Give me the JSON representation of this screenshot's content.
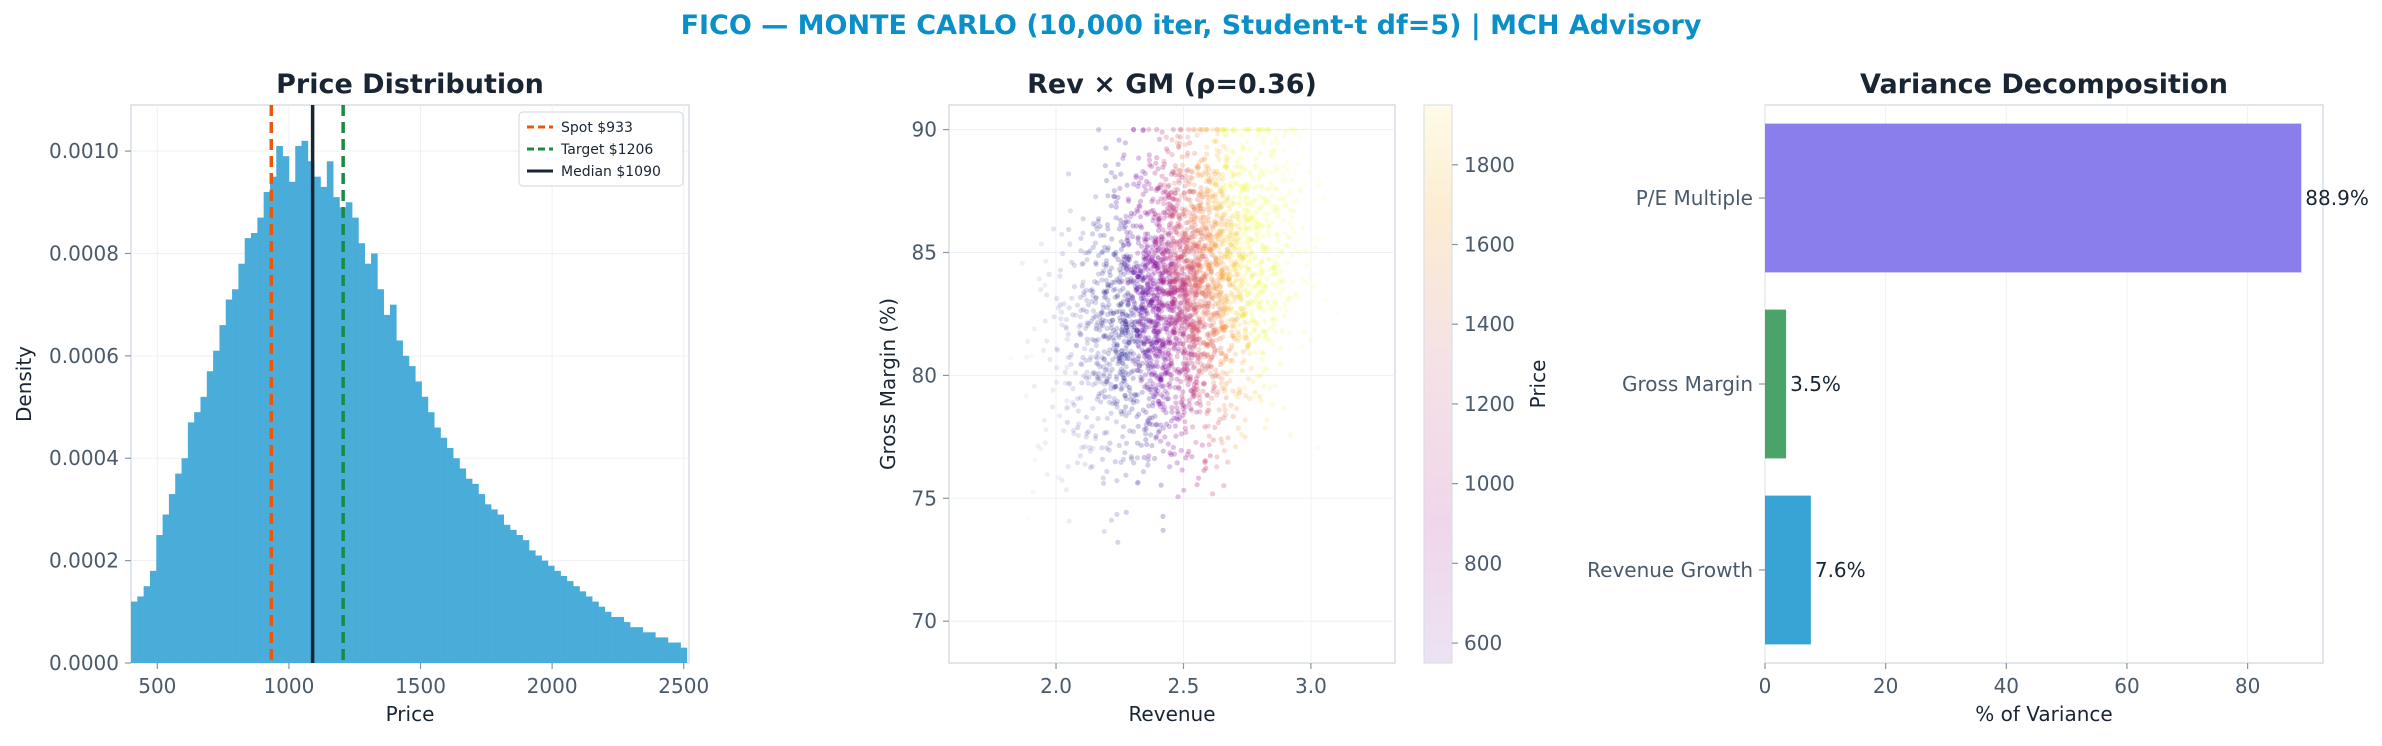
{
  "suptitle": "FICO — MONTE CARLO (10,000 iter, Student-t df=5) | MCH Advisory",
  "colors": {
    "title": "#0a8fc8",
    "axis_text": "#4a5a6a",
    "panel_title": "#1a2533",
    "hist": "#4aadd9",
    "spot": "#e8590c",
    "target": "#1a8a44",
    "median": "#1a2533",
    "bar_pe": "#8a7eec",
    "bar_gm": "#4aa46a",
    "bar_rev": "#37a4d5"
  },
  "chart_data": [
    {
      "type": "bar",
      "subtype": "histogram",
      "title": "Price Distribution",
      "xlabel": "Price",
      "ylabel": "Density",
      "xlim": [
        400,
        2520
      ],
      "ylim": [
        0,
        0.00109
      ],
      "xticks": [
        500,
        1000,
        1500,
        2000,
        2500
      ],
      "yticks": [
        0.0,
        0.0002,
        0.0004,
        0.0006,
        0.0008,
        0.001
      ],
      "ytick_labels": [
        "0.0000",
        "0.0002",
        "0.0004",
        "0.0006",
        "0.0008",
        "0.0010"
      ],
      "bin_start": 400,
      "bin_width": 24,
      "values": [
        0.00012,
        0.00013,
        0.00015,
        0.00018,
        0.00025,
        0.00029,
        0.00033,
        0.00037,
        0.0004,
        0.00047,
        0.00049,
        0.00052,
        0.00057,
        0.00061,
        0.00066,
        0.00071,
        0.00073,
        0.00078,
        0.00083,
        0.00084,
        0.00087,
        0.00092,
        0.00095,
        0.00101,
        0.00099,
        0.00094,
        0.00101,
        0.00102,
        0.00098,
        0.00095,
        0.00093,
        0.00098,
        0.00091,
        0.00089,
        0.0009,
        0.00087,
        0.00082,
        0.00078,
        0.0008,
        0.00073,
        0.00068,
        0.0007,
        0.00063,
        0.0006,
        0.00058,
        0.00055,
        0.00052,
        0.00049,
        0.00046,
        0.00044,
        0.00042,
        0.0004,
        0.00038,
        0.00036,
        0.00035,
        0.00033,
        0.00031,
        0.0003,
        0.00029,
        0.00027,
        0.00026,
        0.00025,
        0.00024,
        0.00022,
        0.00021,
        0.0002,
        0.00019,
        0.00018,
        0.00017,
        0.00016,
        0.00015,
        0.00014,
        0.00013,
        0.00012,
        0.00011,
        0.0001,
        9e-05,
        9e-05,
        8e-05,
        7e-05,
        7e-05,
        6e-05,
        6e-05,
        5e-05,
        5e-05,
        4e-05,
        4e-05,
        3e-05
      ],
      "vlines": [
        {
          "label": "Spot $933",
          "x": 933,
          "color": "#e8590c",
          "style": "dashed"
        },
        {
          "label": "Target $1206",
          "x": 1206,
          "color": "#1a8a44",
          "style": "dashed"
        },
        {
          "label": "Median $1090",
          "x": 1090,
          "color": "#1a2533",
          "style": "solid"
        }
      ],
      "legend_position": "top-right",
      "grid": true
    },
    {
      "type": "scatter",
      "title": "Rev × GM (ρ=0.36)",
      "xlabel": "Revenue",
      "ylabel": "Gross Margin (%)",
      "xlim": [
        1.58,
        3.33
      ],
      "ylim": [
        68.3,
        91.0
      ],
      "xticks": [
        2.0,
        2.5,
        3.0
      ],
      "xtick_labels": [
        "2.0",
        "2.5",
        "3.0"
      ],
      "yticks": [
        70,
        75,
        80,
        85,
        90
      ],
      "n_points": 10000,
      "rev_center": 2.5,
      "gm_center": 83.5,
      "gm_cap": 90,
      "colorbar": {
        "label": "Price",
        "range": [
          550,
          1950
        ],
        "ticks": [
          600,
          800,
          1000,
          1200,
          1400,
          1600,
          1800
        ],
        "colormap": "plasma_r"
      },
      "grid": true
    },
    {
      "type": "bar",
      "orientation": "horizontal",
      "title": "Variance Decomposition",
      "xlabel": "% of Variance",
      "xlim": [
        0,
        92.5
      ],
      "xticks": [
        0,
        20,
        40,
        60,
        80
      ],
      "categories": [
        "P/E Multiple",
        "Gross Margin",
        "Revenue Growth"
      ],
      "values": [
        88.9,
        3.5,
        7.6
      ],
      "value_labels": [
        "88.9%",
        "3.5%",
        "7.6%"
      ],
      "bar_colors": [
        "#8a7eec",
        "#4aa46a",
        "#37a4d5"
      ],
      "grid": true
    }
  ]
}
